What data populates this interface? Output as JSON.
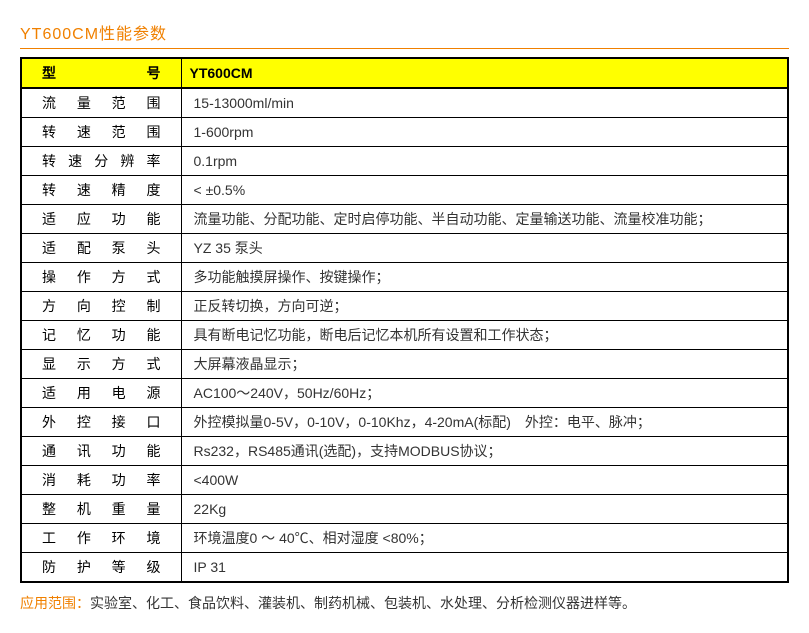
{
  "title": "YT600CM性能参数",
  "table": {
    "header": {
      "label": "型　　号",
      "value": "YT600CM"
    },
    "rows": [
      {
        "label": "流量范围",
        "value": "15-13000ml/min"
      },
      {
        "label": "转速范围",
        "value": "1-600rpm"
      },
      {
        "label": "转速分辨率",
        "value": "0.1rpm"
      },
      {
        "label": "转速精度",
        "value": "< ±0.5%"
      },
      {
        "label": "适应功能",
        "value": "流量功能、分配功能、定时启停功能、半自动功能、定量输送功能、流量校准功能；"
      },
      {
        "label": "适配泵头",
        "value": "YZ 35 泵头"
      },
      {
        "label": "操作方式",
        "value": "多功能触摸屏操作、按键操作；"
      },
      {
        "label": "方向控制",
        "value": "正反转切换，方向可逆；"
      },
      {
        "label": "记忆功能",
        "value": "具有断电记忆功能，断电后记忆本机所有设置和工作状态；"
      },
      {
        "label": "显示方式",
        "value": "大屏幕液晶显示；"
      },
      {
        "label": "适用电源",
        "value": "AC100～240V，50Hz/60Hz；"
      },
      {
        "label": "外控接口",
        "value": "外控模拟量0-5V，0-10V，0-10Khz，4-20mA(标配)　外控：电平、脉冲；"
      },
      {
        "label": "通讯功能",
        "value": "Rs232，RS485通讯(选配)，支持MODBUS协议；"
      },
      {
        "label": "消耗功率",
        "value": "<400W"
      },
      {
        "label": "整机重量",
        "value": "22Kg"
      },
      {
        "label": "工作环境",
        "value": "环境温度0 ～ 40℃、相对湿度 <80%；"
      },
      {
        "label": "防护等级",
        "value": "IP 31"
      }
    ]
  },
  "footer": {
    "label": "应用范围：",
    "text": "实验室、化工、食品饮料、灌装机、制药机械、包装机、水处理、分析检测仪器进样等。"
  },
  "colors": {
    "title_color": "#f08000",
    "header_bg": "#ffff00",
    "border_color": "#000000",
    "text_color": "#333333"
  }
}
